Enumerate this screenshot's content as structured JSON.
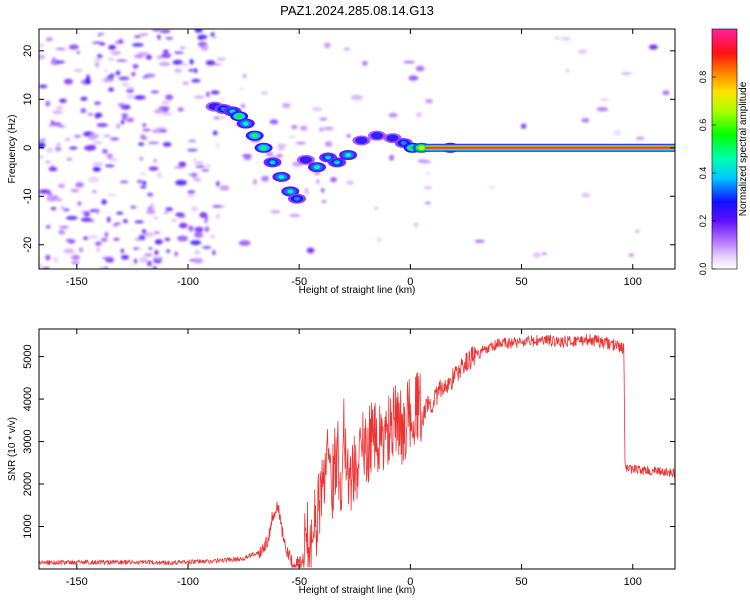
{
  "page_title": "PAZ1.2024.285.08.14.G13",
  "chart_data": [
    {
      "type": "heatmap",
      "title": "PAZ1.2024.285.08.14.G13",
      "xlabel": "Height of straight line (km)",
      "ylabel": "Frequency (Hz)",
      "xlim": [
        -167,
        119
      ],
      "ylim": [
        -25,
        24.5
      ],
      "xticks": [
        "-150",
        "-100",
        "-50",
        "0",
        "50",
        "100"
      ],
      "xtick_values": [
        -150,
        -100,
        -50,
        0,
        50,
        100
      ],
      "yticks": [
        "20",
        "10",
        "0",
        "-10",
        "-20"
      ],
      "ytick_values": [
        20,
        10,
        0,
        -10,
        -20
      ],
      "colorbar": {
        "label": "Normalized spectral amplitude",
        "range": [
          0,
          1
        ],
        "ticks": [
          "0.0",
          "0.2",
          "0.4",
          "0.6",
          "0.8"
        ],
        "tick_values": [
          0,
          0.2,
          0.4,
          0.6,
          0.8
        ]
      },
      "features": {
        "dominant_line": {
          "x_start": 7,
          "x_end": 119,
          "frequency": 0,
          "amplitude": 1.0
        },
        "ridge_points": [
          {
            "x": -88,
            "y": 8.5,
            "a": 0.3
          },
          {
            "x": -84,
            "y": 8.0,
            "a": 0.35
          },
          {
            "x": -80,
            "y": 7.5,
            "a": 0.4
          },
          {
            "x": -77,
            "y": 6.5,
            "a": 0.55
          },
          {
            "x": -74,
            "y": 5.0,
            "a": 0.45
          },
          {
            "x": -70,
            "y": 2.5,
            "a": 0.5
          },
          {
            "x": -66,
            "y": 0.0,
            "a": 0.5
          },
          {
            "x": -62,
            "y": -3.0,
            "a": 0.4
          },
          {
            "x": -58,
            "y": -6.0,
            "a": 0.45
          },
          {
            "x": -54,
            "y": -9.0,
            "a": 0.45
          },
          {
            "x": -51,
            "y": -10.5,
            "a": 0.35
          },
          {
            "x": -47,
            "y": -2.5,
            "a": 0.3
          },
          {
            "x": -42,
            "y": -4.0,
            "a": 0.45
          },
          {
            "x": -37,
            "y": -2.0,
            "a": 0.4
          },
          {
            "x": -33,
            "y": -3.0,
            "a": 0.4
          },
          {
            "x": -28,
            "y": -1.5,
            "a": 0.45
          },
          {
            "x": -22,
            "y": 1.5,
            "a": 0.3
          },
          {
            "x": -15,
            "y": 2.5,
            "a": 0.3
          },
          {
            "x": -8,
            "y": 2.0,
            "a": 0.3
          },
          {
            "x": -3,
            "y": 1.0,
            "a": 0.35
          },
          {
            "x": 1,
            "y": 0.0,
            "a": 0.55
          },
          {
            "x": 5,
            "y": 0.0,
            "a": 0.7
          },
          {
            "x": 18,
            "y": 0.0,
            "a": 0.65
          }
        ]
      }
    },
    {
      "type": "line",
      "title": "",
      "xlabel": "Height of straight line (km)",
      "ylabel": "SNR (10 * v/v)",
      "xlim": [
        -167,
        119
      ],
      "ylim": [
        0,
        5650
      ],
      "xticks": [
        "-150",
        "-100",
        "-50",
        "0",
        "50",
        "100"
      ],
      "xtick_values": [
        -150,
        -100,
        -50,
        0,
        50,
        100
      ],
      "yticks": [
        "1000",
        "2000",
        "3000",
        "4000",
        "5000"
      ],
      "ytick_values": [
        1000,
        2000,
        3000,
        4000,
        5000
      ],
      "series": [
        {
          "color": "#ee3333",
          "x": [
            -167,
            -150,
            -130,
            -110,
            -90,
            -75,
            -68,
            -64,
            -62,
            -60,
            -59,
            -57,
            -55,
            -52,
            -49,
            -46,
            -42,
            -39,
            -37,
            -35,
            -33,
            -31,
            -30,
            -28,
            -26,
            -24,
            -22,
            -20,
            -18,
            -15,
            -12,
            -10,
            -8,
            -6,
            -4,
            -2,
            0,
            2,
            4,
            6,
            8,
            10,
            13,
            16,
            20,
            24,
            28,
            32,
            36,
            40,
            50,
            60,
            70,
            80,
            90,
            96,
            96.5,
            100,
            110,
            119
          ],
          "y": [
            150,
            160,
            160,
            150,
            180,
            250,
            400,
            700,
            1250,
            1500,
            1300,
            700,
            300,
            100,
            150,
            350,
            800,
            1800,
            2700,
            1700,
            2500,
            1600,
            3000,
            2000,
            1800,
            2100,
            2600,
            2300,
            2800,
            2600,
            2700,
            2850,
            3000,
            3100,
            2950,
            3150,
            3250,
            3500,
            3300,
            3650,
            3900,
            3900,
            4200,
            4300,
            4550,
            4800,
            5000,
            5100,
            5200,
            5300,
            5350,
            5380,
            5350,
            5400,
            5300,
            5200,
            2400,
            2350,
            2300,
            2250
          ]
        }
      ]
    }
  ]
}
